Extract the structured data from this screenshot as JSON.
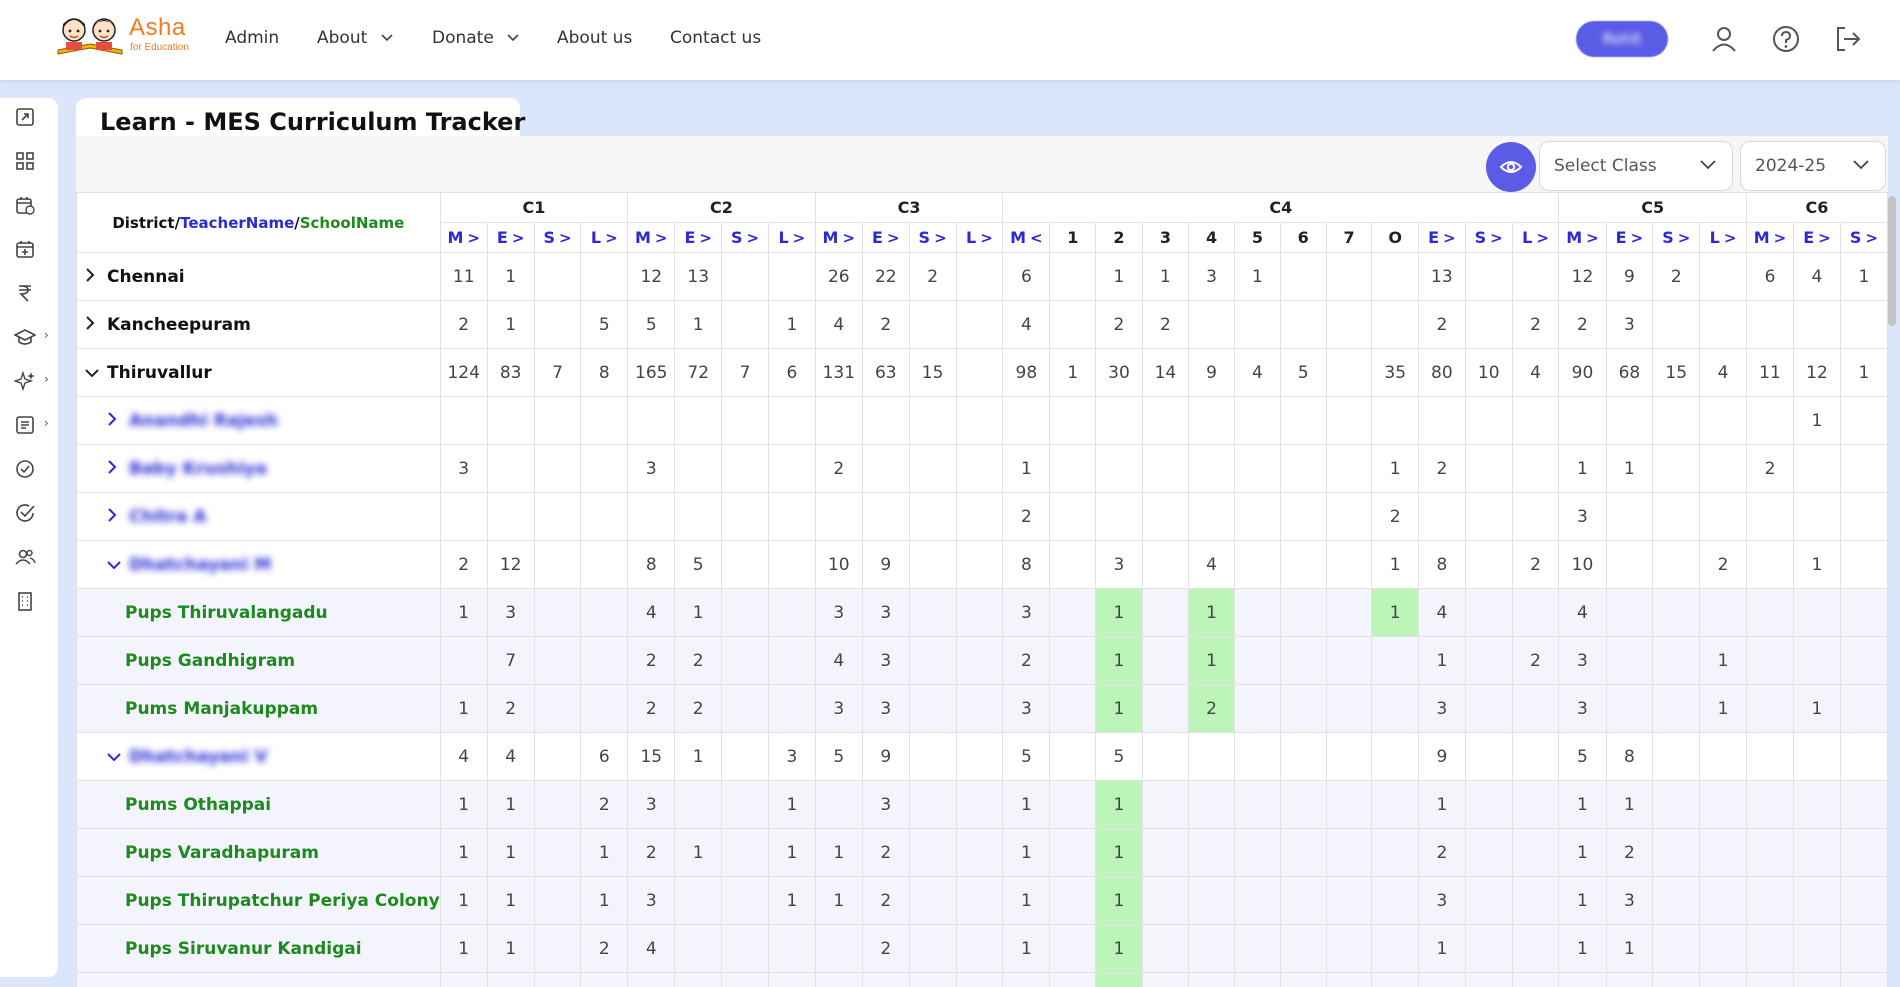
{
  "logo": {
    "brand": "Asha",
    "tagline": "for Education"
  },
  "nav": {
    "items": [
      {
        "label": "Admin",
        "has_dropdown": false
      },
      {
        "label": "About",
        "has_dropdown": true
      },
      {
        "label": "Donate",
        "has_dropdown": true
      },
      {
        "label": "About us",
        "has_dropdown": false
      },
      {
        "label": "Contact us",
        "has_dropdown": false
      }
    ],
    "user_label": "Rohit",
    "icons": [
      "user-icon",
      "help-icon",
      "logout-icon"
    ]
  },
  "sidebar": {
    "icons": [
      "external-link-icon",
      "dashboard-icon",
      "calendar-clock-icon",
      "calendar-plus-icon",
      "rupee-icon",
      "graduation-cap-icon",
      "sparkles-icon",
      "document-icon",
      "check-circle-icon",
      "check-badge-icon",
      "users-icon",
      "building-icon"
    ]
  },
  "page": {
    "title": "Learn - MES Curriculum Tracker",
    "class_select": {
      "placeholder": "Select Class"
    },
    "year_select": {
      "value": "2024-25"
    }
  },
  "table": {
    "header_first": {
      "district": "District",
      "teacher": "TeacherName",
      "school": "SchoolName"
    },
    "class_groups": [
      {
        "label": "C1",
        "span": 4
      },
      {
        "label": "C2",
        "span": 4
      },
      {
        "label": "C3",
        "span": 4
      },
      {
        "label": "C4",
        "span": 12
      },
      {
        "label": "C5",
        "span": 4
      },
      {
        "label": "C6",
        "span": 3
      }
    ],
    "columns": [
      {
        "label": "M",
        "arrow": ">"
      },
      {
        "label": "E",
        "arrow": ">"
      },
      {
        "label": "S",
        "arrow": ">"
      },
      {
        "label": "L",
        "arrow": ">"
      },
      {
        "label": "M",
        "arrow": ">"
      },
      {
        "label": "E",
        "arrow": ">"
      },
      {
        "label": "S",
        "arrow": ">"
      },
      {
        "label": "L",
        "arrow": ">"
      },
      {
        "label": "M",
        "arrow": ">"
      },
      {
        "label": "E",
        "arrow": ">"
      },
      {
        "label": "S",
        "arrow": ">"
      },
      {
        "label": "L",
        "arrow": ">"
      },
      {
        "label": "M",
        "arrow": "<"
      },
      {
        "label": "1",
        "arrow": ""
      },
      {
        "label": "2",
        "arrow": ""
      },
      {
        "label": "3",
        "arrow": ""
      },
      {
        "label": "4",
        "arrow": ""
      },
      {
        "label": "5",
        "arrow": ""
      },
      {
        "label": "6",
        "arrow": ""
      },
      {
        "label": "7",
        "arrow": ""
      },
      {
        "label": "O",
        "arrow": ""
      },
      {
        "label": "E",
        "arrow": ">"
      },
      {
        "label": "S",
        "arrow": ">"
      },
      {
        "label": "L",
        "arrow": ">"
      },
      {
        "label": "M",
        "arrow": ">"
      },
      {
        "label": "E",
        "arrow": ">"
      },
      {
        "label": "S",
        "arrow": ">"
      },
      {
        "label": "L",
        "arrow": ">"
      },
      {
        "label": "M",
        "arrow": ">"
      },
      {
        "label": "E",
        "arrow": ">"
      },
      {
        "label": "S",
        "arrow": ">"
      }
    ],
    "rows": [
      {
        "level": 0,
        "type": "district",
        "toggle": ">",
        "name": "Chennai",
        "blur": false,
        "cells": [
          "11",
          "1",
          "",
          "",
          "12",
          "13",
          "",
          "",
          "26",
          "22",
          "2",
          "",
          "6",
          "",
          "1",
          "1",
          "3",
          "1",
          "",
          "",
          "",
          "13",
          "",
          "",
          "12",
          "9",
          "2",
          "",
          "6",
          "4",
          "1"
        ]
      },
      {
        "level": 0,
        "type": "district",
        "toggle": ">",
        "name": "Kancheepuram",
        "blur": false,
        "cells": [
          "2",
          "1",
          "",
          "5",
          "5",
          "1",
          "",
          "1",
          "4",
          "2",
          "",
          "",
          "4",
          "",
          "2",
          "2",
          "",
          "",
          "",
          "",
          "",
          "2",
          "",
          "2",
          "2",
          "3",
          "",
          "",
          "",
          "",
          ""
        ]
      },
      {
        "level": 0,
        "type": "district",
        "toggle": "v",
        "name": "Thiruvallur",
        "blur": false,
        "cells": [
          "124",
          "83",
          "7",
          "8",
          "165",
          "72",
          "7",
          "6",
          "131",
          "63",
          "15",
          "",
          "98",
          "1",
          "30",
          "14",
          "9",
          "4",
          "5",
          "",
          "35",
          "80",
          "10",
          "4",
          "90",
          "68",
          "15",
          "4",
          "11",
          "12",
          "1"
        ]
      },
      {
        "level": 1,
        "type": "teacher",
        "toggle": ">",
        "name": "Anandhi Rajesh",
        "blur": true,
        "cells": [
          "",
          "",
          "",
          "",
          "",
          "",
          "",
          "",
          "",
          "",
          "",
          "",
          "",
          "",
          "",
          "",
          "",
          "",
          "",
          "",
          "",
          "",
          "",
          "",
          "",
          "",
          "",
          "",
          "",
          "1",
          ""
        ]
      },
      {
        "level": 1,
        "type": "teacher",
        "toggle": ">",
        "name": "Baby Krushiya",
        "blur": true,
        "cells": [
          "3",
          "",
          "",
          "",
          "3",
          "",
          "",
          "",
          "2",
          "",
          "",
          "",
          "1",
          "",
          "",
          "",
          "",
          "",
          "",
          "",
          "1",
          "2",
          "",
          "",
          "1",
          "1",
          "",
          "",
          "2",
          "",
          ""
        ]
      },
      {
        "level": 1,
        "type": "teacher",
        "toggle": ">",
        "name": "Chitra A",
        "blur": true,
        "cells": [
          "",
          "",
          "",
          "",
          "",
          "",
          "",
          "",
          "",
          "",
          "",
          "",
          "2",
          "",
          "",
          "",
          "",
          "",
          "",
          "",
          "2",
          "",
          "",
          "",
          "3",
          "",
          "",
          "",
          "",
          "",
          ""
        ]
      },
      {
        "level": 1,
        "type": "teacher",
        "toggle": "v",
        "name": "Dhatchayani M",
        "blur": true,
        "cells": [
          "2",
          "12",
          "",
          "",
          "8",
          "5",
          "",
          "",
          "10",
          "9",
          "",
          "",
          "8",
          "",
          "3",
          "",
          "4",
          "",
          "",
          "",
          "1",
          "8",
          "",
          "2",
          "10",
          "",
          "",
          "2",
          "",
          "1",
          ""
        ]
      },
      {
        "level": 2,
        "type": "school",
        "toggle": "",
        "name": "Pups Thiruvalangadu",
        "blur": false,
        "cells": [
          "1",
          "3",
          "",
          "",
          "4",
          "1",
          "",
          "",
          "3",
          "3",
          "",
          "",
          "3",
          "",
          "1",
          "",
          "1",
          "",
          "",
          "",
          "1",
          "4",
          "",
          "",
          "4",
          "",
          "",
          "",
          "",
          "",
          ""
        ],
        "highlight": [
          14,
          16,
          20
        ]
      },
      {
        "level": 2,
        "type": "school",
        "toggle": "",
        "name": "Pups Gandhigram",
        "blur": false,
        "cells": [
          "",
          "7",
          "",
          "",
          "2",
          "2",
          "",
          "",
          "4",
          "3",
          "",
          "",
          "2",
          "",
          "1",
          "",
          "1",
          "",
          "",
          "",
          "",
          "1",
          "",
          "2",
          "3",
          "",
          "",
          "1",
          "",
          "",
          ""
        ],
        "highlight": [
          14,
          16
        ]
      },
      {
        "level": 2,
        "type": "school",
        "toggle": "",
        "name": "Pums Manjakuppam",
        "blur": false,
        "cells": [
          "1",
          "2",
          "",
          "",
          "2",
          "2",
          "",
          "",
          "3",
          "3",
          "",
          "",
          "3",
          "",
          "1",
          "",
          "2",
          "",
          "",
          "",
          "",
          "3",
          "",
          "",
          "3",
          "",
          "",
          "1",
          "",
          "1",
          ""
        ],
        "highlight": [
          14,
          16
        ]
      },
      {
        "level": 1,
        "type": "teacher",
        "toggle": "v",
        "name": "Dhatchayani V",
        "blur": true,
        "cells": [
          "4",
          "4",
          "",
          "6",
          "15",
          "1",
          "",
          "3",
          "5",
          "9",
          "",
          "",
          "5",
          "",
          "5",
          "",
          "",
          "",
          "",
          "",
          "",
          "9",
          "",
          "",
          "5",
          "8",
          "",
          "",
          "",
          "",
          ""
        ]
      },
      {
        "level": 2,
        "type": "school",
        "toggle": "",
        "name": "Pums Othappai",
        "blur": false,
        "cells": [
          "1",
          "1",
          "",
          "2",
          "3",
          "",
          "",
          "1",
          "",
          "3",
          "",
          "",
          "1",
          "",
          "1",
          "",
          "",
          "",
          "",
          "",
          "",
          "1",
          "",
          "",
          "1",
          "1",
          "",
          "",
          "",
          "",
          ""
        ],
        "highlight": [
          14
        ]
      },
      {
        "level": 2,
        "type": "school",
        "toggle": "",
        "name": "Pups Varadhapuram",
        "blur": false,
        "cells": [
          "1",
          "1",
          "",
          "1",
          "2",
          "1",
          "",
          "1",
          "1",
          "2",
          "",
          "",
          "1",
          "",
          "1",
          "",
          "",
          "",
          "",
          "",
          "",
          "2",
          "",
          "",
          "1",
          "2",
          "",
          "",
          "",
          "",
          ""
        ],
        "highlight": [
          14
        ]
      },
      {
        "level": 2,
        "type": "school",
        "toggle": "",
        "name": "Pups Thirupatchur Periya Colony",
        "blur": false,
        "cells": [
          "1",
          "1",
          "",
          "1",
          "3",
          "",
          "",
          "1",
          "1",
          "2",
          "",
          "",
          "1",
          "",
          "1",
          "",
          "",
          "",
          "",
          "",
          "",
          "3",
          "",
          "",
          "1",
          "3",
          "",
          "",
          "",
          "",
          ""
        ],
        "highlight": [
          14
        ]
      },
      {
        "level": 2,
        "type": "school",
        "toggle": "",
        "name": "Pups Siruvanur Kandigai",
        "blur": false,
        "cells": [
          "1",
          "1",
          "",
          "2",
          "4",
          "",
          "",
          "",
          "",
          "2",
          "",
          "",
          "1",
          "",
          "1",
          "",
          "",
          "",
          "",
          "",
          "",
          "1",
          "",
          "",
          "1",
          "1",
          "",
          "",
          "",
          "",
          ""
        ],
        "highlight": [
          14
        ]
      },
      {
        "level": 2,
        "type": "school",
        "toggle": "",
        "name": "",
        "blur": false,
        "cells": [
          "",
          "",
          "",
          "",
          "",
          "",
          "",
          "",
          "",
          "",
          "",
          "",
          "",
          "",
          "",
          "",
          "",
          "",
          "",
          "",
          "",
          "",
          "",
          "",
          "",
          "",
          "",
          "",
          "",
          "",
          ""
        ],
        "highlight": [
          14
        ]
      }
    ]
  }
}
